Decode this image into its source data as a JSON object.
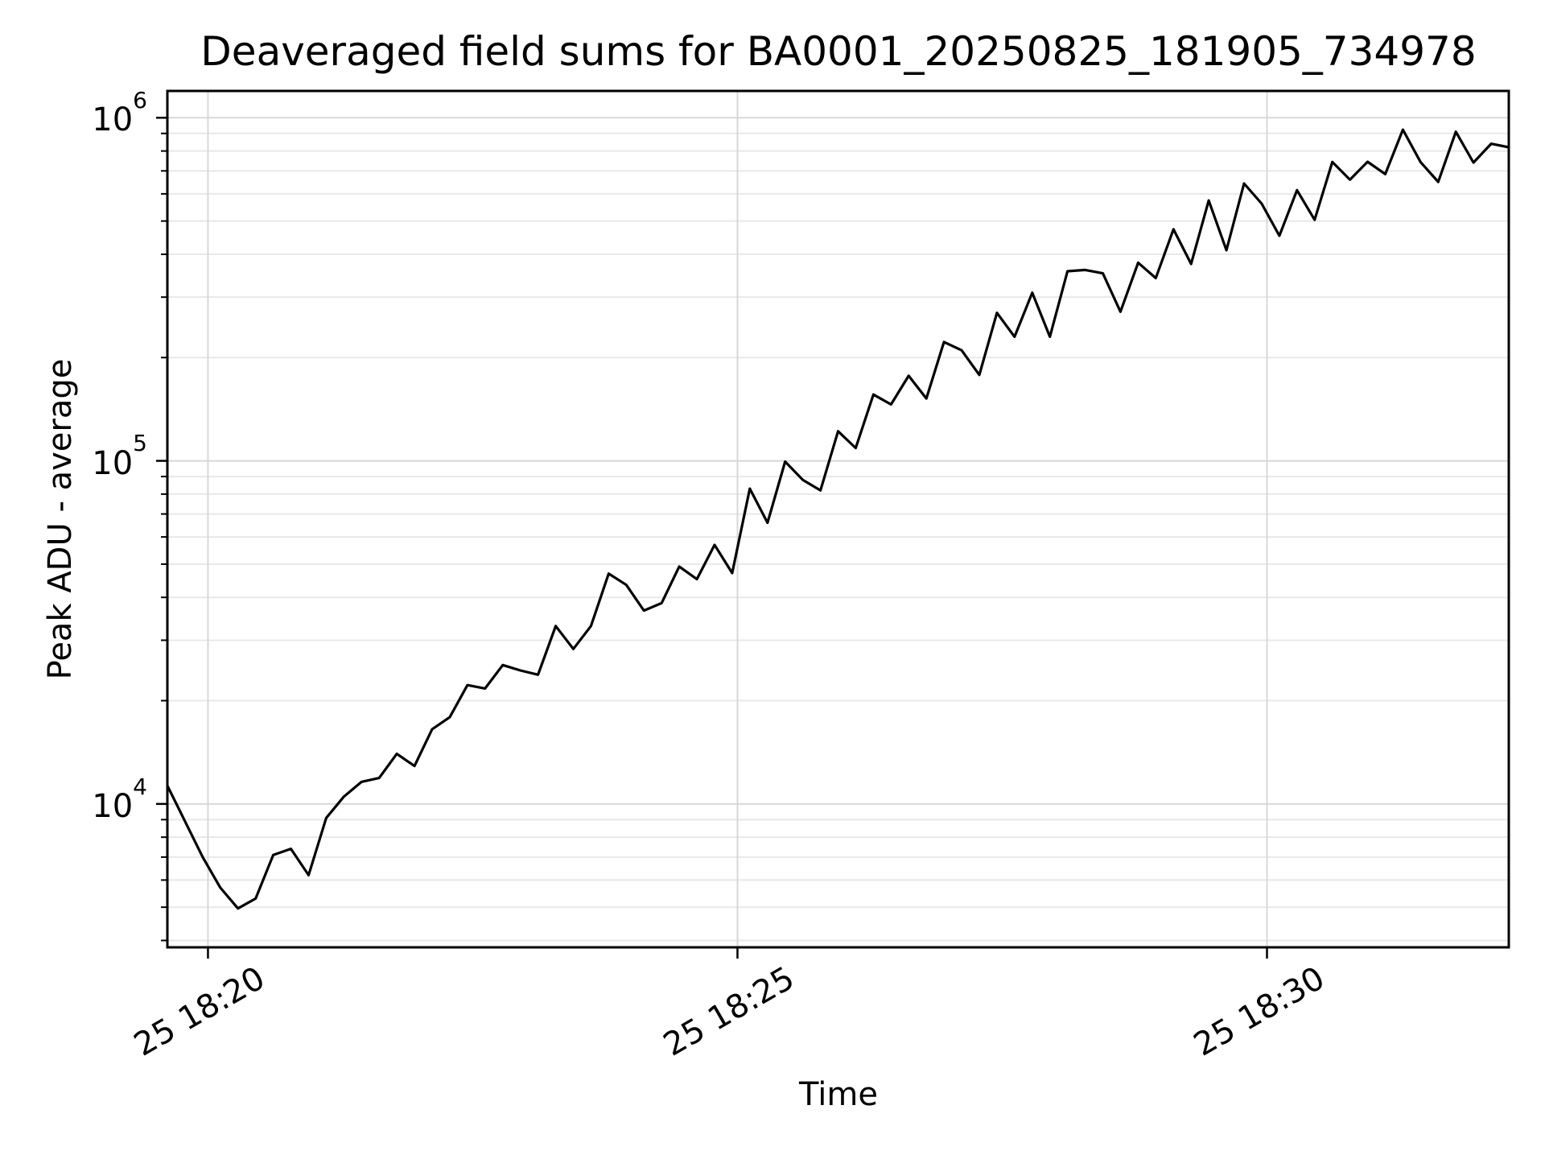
{
  "chart_data": {
    "type": "line",
    "title": "Deaveraged field sums for BA0001_20250825_181905_734978",
    "xlabel": "Time",
    "ylabel": "Peak ADU - average",
    "y_scale": "log",
    "x_scale": "time-seconds",
    "grid": true,
    "legend_position": "none",
    "line_color": "#000000",
    "grid_color_major": "#d8d8d8",
    "grid_color_minor": "#e8e8e8",
    "xlim_s": [
      0,
      760
    ],
    "ylim": [
      3820,
      1197000
    ],
    "sample_interval_s": 10,
    "x_ticks": [
      {
        "offset_s": 23,
        "label": "25 18:20"
      },
      {
        "offset_s": 323,
        "label": "25 18:25"
      },
      {
        "offset_s": 623,
        "label": "25 18:30"
      }
    ],
    "y_ticks": [
      {
        "value": 10000,
        "base": "10",
        "exp": "4"
      },
      {
        "value": 100000,
        "base": "10",
        "exp": "5"
      },
      {
        "value": 1000000,
        "base": "10",
        "exp": "6"
      }
    ],
    "values": [
      11300,
      8900,
      7000,
      5700,
      4960,
      5300,
      7100,
      7400,
      6200,
      9100,
      10500,
      11600,
      11900,
      14000,
      12900,
      16500,
      17900,
      22200,
      21700,
      25400,
      24500,
      23800,
      33000,
      28300,
      33000,
      46900,
      43500,
      36600,
      38500,
      49200,
      45200,
      56900,
      47100,
      83000,
      66000,
      99500,
      88000,
      82000,
      122000,
      109000,
      156000,
      146000,
      177000,
      152000,
      222000,
      210000,
      178000,
      270000,
      230000,
      309000,
      230000,
      357000,
      360000,
      352000,
      272000,
      378000,
      341000,
      473000,
      375000,
      574000,
      411000,
      643000,
      562000,
      453000,
      615000,
      504000,
      743000,
      660000,
      744000,
      685000,
      923000,
      743000,
      650000,
      910000,
      740000,
      840000,
      820000
    ]
  }
}
